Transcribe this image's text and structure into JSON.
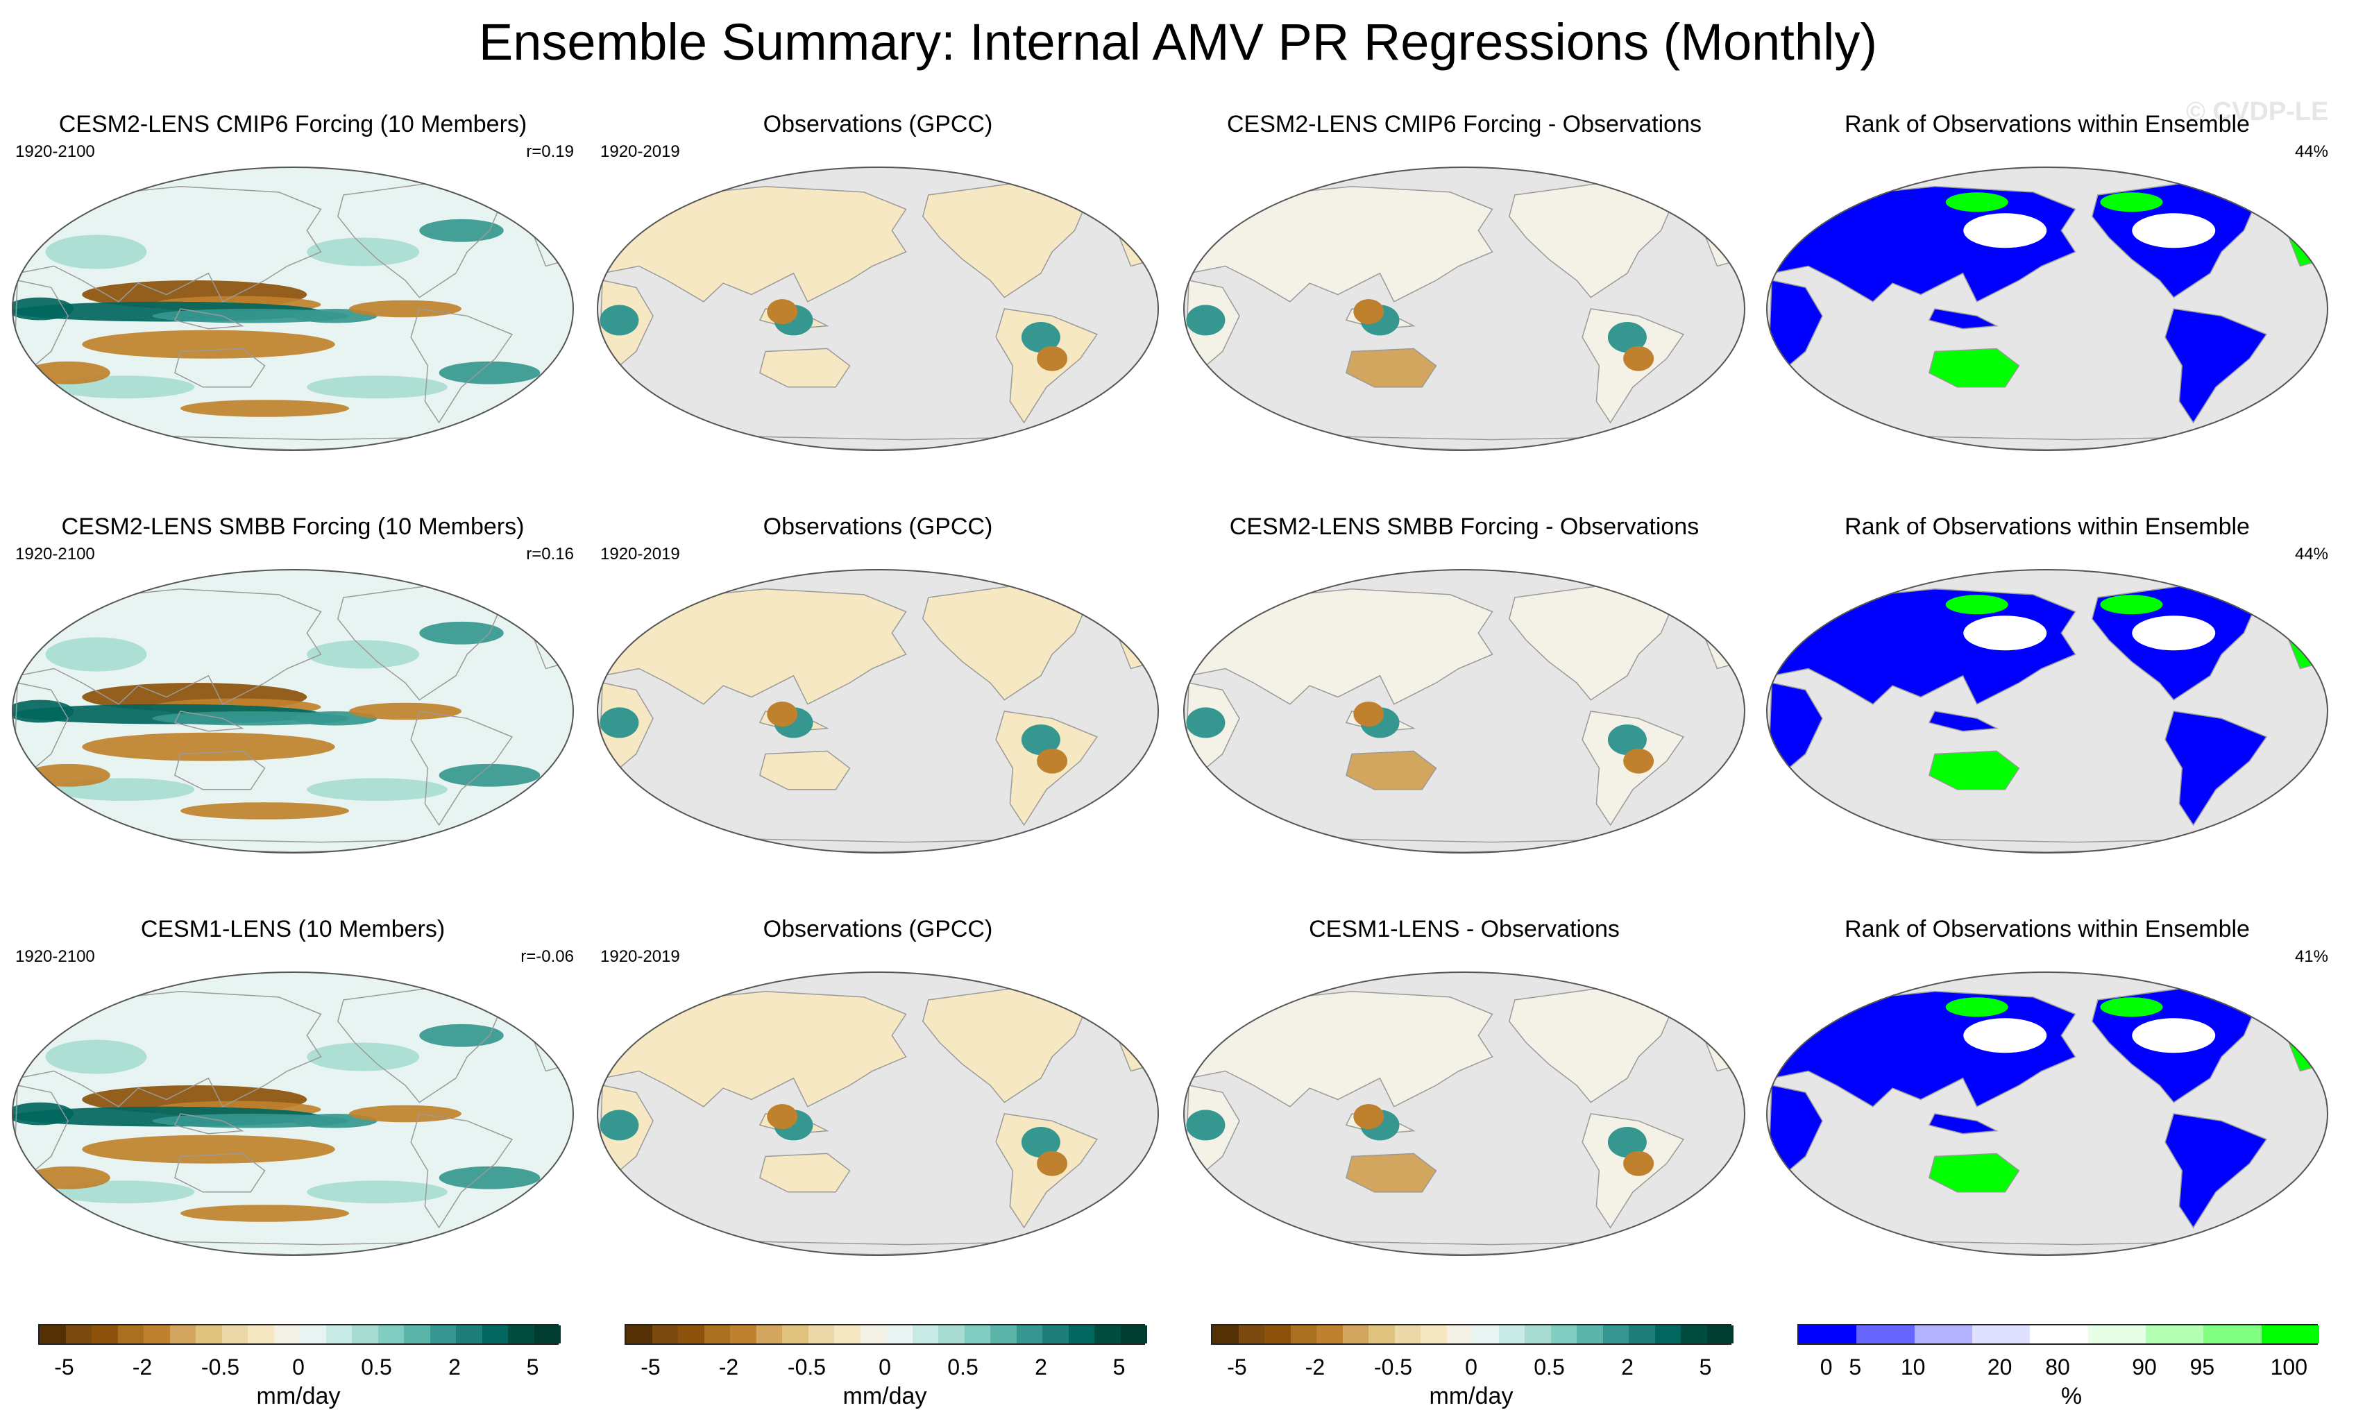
{
  "figure": {
    "title": "Ensemble Summary: Internal AMV PR Regressions (Monthly)",
    "watermark": "© CVDP-LE"
  },
  "chart_data": {
    "type": "heatmap",
    "layout": "3 rows x 4 columns of global maps (Robinson projection, Pacific-centred)",
    "rows": [
      {
        "panels": [
          {
            "title": "CESM2-LENS CMIP6 Forcing (10 Members)",
            "left_label": "1920-2100",
            "right_label": "r=0.19",
            "kind": "model"
          },
          {
            "title": "Observations (GPCC)",
            "left_label": "1920-2019",
            "right_label": "",
            "kind": "obs"
          },
          {
            "title": "CESM2-LENS CMIP6 Forcing - Observations",
            "left_label": "",
            "right_label": "",
            "kind": "diff"
          },
          {
            "title": "Rank of Observations within Ensemble",
            "left_label": "",
            "right_label": "44%",
            "kind": "rank"
          }
        ]
      },
      {
        "panels": [
          {
            "title": "CESM2-LENS SMBB Forcing (10 Members)",
            "left_label": "1920-2100",
            "right_label": "r=0.16",
            "kind": "model"
          },
          {
            "title": "Observations (GPCC)",
            "left_label": "1920-2019",
            "right_label": "",
            "kind": "obs"
          },
          {
            "title": "CESM2-LENS SMBB Forcing - Observations",
            "left_label": "",
            "right_label": "",
            "kind": "diff"
          },
          {
            "title": "Rank of Observations within Ensemble",
            "left_label": "",
            "right_label": "44%",
            "kind": "rank"
          }
        ]
      },
      {
        "panels": [
          {
            "title": "CESM1-LENS (10 Members)",
            "left_label": "1920-2100",
            "right_label": "r=-0.06",
            "kind": "model"
          },
          {
            "title": "Observations (GPCC)",
            "left_label": "1920-2019",
            "right_label": "",
            "kind": "obs"
          },
          {
            "title": "CESM1-LENS - Observations",
            "left_label": "",
            "right_label": "",
            "kind": "diff"
          },
          {
            "title": "Rank of Observations within Ensemble",
            "left_label": "",
            "right_label": "41%",
            "kind": "rank"
          }
        ]
      }
    ],
    "colorbars": [
      {
        "unit": "mm/day",
        "colors": [
          "#543005",
          "#7a4a0e",
          "#8c510a",
          "#a8701f",
          "#bf812d",
          "#d2a65e",
          "#dfc27d",
          "#ebd9a9",
          "#f6e8c3",
          "#f4f1e6",
          "#e8f4f1",
          "#c7eae5",
          "#a8dcd3",
          "#80cdc1",
          "#5ab4a8",
          "#35978f",
          "#1d7f77",
          "#01665e",
          "#004d3f",
          "#003c30"
        ],
        "tick_labels": [
          "-5",
          "-2",
          "-0.5",
          "0",
          "0.5",
          "2",
          "5"
        ],
        "tick_positions": [
          1,
          4,
          7,
          10,
          13,
          16,
          19
        ]
      },
      {
        "unit": "mm/day",
        "colors": [
          "#543005",
          "#7a4a0e",
          "#8c510a",
          "#a8701f",
          "#bf812d",
          "#d2a65e",
          "#dfc27d",
          "#ebd9a9",
          "#f6e8c3",
          "#f4f1e6",
          "#e8f4f1",
          "#c7eae5",
          "#a8dcd3",
          "#80cdc1",
          "#5ab4a8",
          "#35978f",
          "#1d7f77",
          "#01665e",
          "#004d3f",
          "#003c30"
        ],
        "tick_labels": [
          "-5",
          "-2",
          "-0.5",
          "0",
          "0.5",
          "2",
          "5"
        ],
        "tick_positions": [
          1,
          4,
          7,
          10,
          13,
          16,
          19
        ]
      },
      {
        "unit": "mm/day",
        "colors": [
          "#543005",
          "#7a4a0e",
          "#8c510a",
          "#a8701f",
          "#bf812d",
          "#d2a65e",
          "#dfc27d",
          "#ebd9a9",
          "#f6e8c3",
          "#f4f1e6",
          "#e8f4f1",
          "#c7eae5",
          "#a8dcd3",
          "#80cdc1",
          "#5ab4a8",
          "#35978f",
          "#1d7f77",
          "#01665e",
          "#004d3f",
          "#003c30"
        ],
        "tick_labels": [
          "-5",
          "-2",
          "-0.5",
          "0",
          "0.5",
          "2",
          "5"
        ],
        "tick_positions": [
          1,
          4,
          7,
          10,
          13,
          16,
          19
        ]
      },
      {
        "unit": "%",
        "colors": [
          "#0000ff",
          "#6666ff",
          "#b3b3ff",
          "#e0e0ff",
          "#ffffff",
          "#e6ffe6",
          "#b3ffb3",
          "#80ff80",
          "#00ff00"
        ],
        "tick_labels": [
          "0",
          "5",
          "10",
          "20",
          "80",
          "90",
          "95",
          "100"
        ],
        "tick_positions": [
          0.5,
          1,
          2,
          3.5,
          4.5,
          6,
          7,
          8.5
        ]
      }
    ],
    "map_colors": {
      "ocean_missing": "#e6e6e6",
      "land_outline": "#9a9a9a",
      "map_border": "#555555",
      "brown": "#bf812d",
      "dark_brown": "#8c510a",
      "teal": "#35978f",
      "dark_teal": "#01665e",
      "light_teal": "#a8dcd3",
      "rank_blue": "#0000ff",
      "rank_green": "#00ff00"
    }
  }
}
